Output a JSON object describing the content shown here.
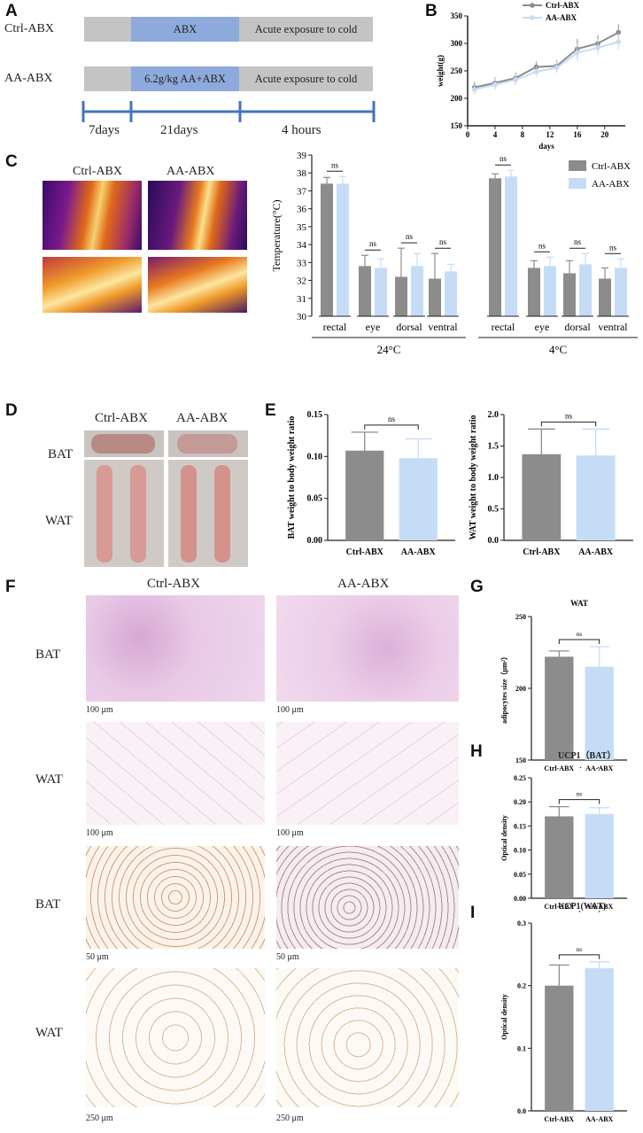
{
  "panels": {
    "A": "A",
    "B": "B",
    "C": "C",
    "D": "D",
    "E": "E",
    "F": "F",
    "G": "G",
    "H": "H",
    "I": "I"
  },
  "colors": {
    "ctrl": "#8c8c8c",
    "aa": "#c5dcf6",
    "abx": "#8eaadc",
    "grey_bar": "#c4c4c4",
    "timeline": "#4472c4"
  },
  "panelA": {
    "rows": [
      {
        "label": "Ctrl-ABX",
        "segments": [
          "",
          "ABX",
          "Acute exposure to cold"
        ]
      },
      {
        "label": "AA-ABX",
        "segments": [
          "",
          "6.2g/kg AA+ABX",
          "Acute exposure to cold"
        ]
      }
    ],
    "timeline": [
      "7days",
      "21days",
      "4 hours"
    ]
  },
  "panelB": {
    "chart_data": {
      "type": "line",
      "xlabel": "days",
      "ylabel": "weight(g)",
      "xlim": [
        0,
        23
      ],
      "ylim": [
        150,
        350
      ],
      "xticks": [
        0,
        4,
        8,
        12,
        16,
        20
      ],
      "yticks": [
        150,
        200,
        250,
        300,
        350
      ],
      "series": [
        {
          "name": "Ctrl-ABX",
          "x": [
            1,
            4,
            7,
            10,
            13,
            16,
            19,
            22
          ],
          "values": [
            220,
            228,
            237,
            257,
            259,
            290,
            300,
            320
          ],
          "err": [
            10,
            10,
            10,
            10,
            10,
            18,
            15,
            15
          ]
        },
        {
          "name": "AA-ABX",
          "x": [
            1,
            4,
            7,
            10,
            13,
            16,
            19,
            22
          ],
          "values": [
            216,
            225,
            234,
            248,
            256,
            283,
            292,
            303
          ],
          "err": [
            8,
            10,
            10,
            10,
            10,
            15,
            15,
            15
          ]
        }
      ]
    }
  },
  "panelC": {
    "thermal_labels": [
      "Ctrl-ABX",
      "AA-ABX"
    ],
    "chart_data": {
      "type": "bar",
      "ylabel": "Temperature(°C)",
      "ylim": [
        30,
        39
      ],
      "yticks": [
        30,
        31,
        32,
        33,
        34,
        35,
        36,
        37,
        38,
        39
      ],
      "categories": [
        "rectal",
        "eye",
        "dorsal",
        "ventral",
        "rectal",
        "eye",
        "dorsal",
        "ventral"
      ],
      "groups": [
        "24°C",
        "4°C"
      ],
      "series": [
        {
          "name": "Ctrl-ABX",
          "values": [
            37.4,
            32.8,
            32.2,
            32.1,
            37.7,
            32.7,
            32.4,
            32.1
          ],
          "err": [
            0.35,
            0.6,
            1.6,
            1.4,
            0.25,
            0.4,
            0.7,
            0.6
          ]
        },
        {
          "name": "AA-ABX",
          "values": [
            37.4,
            32.7,
            32.8,
            32.5,
            37.8,
            32.8,
            32.9,
            32.7
          ],
          "err": [
            0.4,
            0.5,
            0.7,
            0.4,
            0.35,
            0.5,
            0.6,
            0.5
          ]
        }
      ],
      "annotations": [
        "ns",
        "ns",
        "ns",
        "ns",
        "ns",
        "ns",
        "ns",
        "ns"
      ]
    }
  },
  "panelD": {
    "cols": [
      "Ctrl-ABX",
      "AA-ABX"
    ],
    "rows": [
      "BAT",
      "WAT"
    ]
  },
  "panelE": {
    "chart_data": [
      {
        "type": "bar",
        "ylabel": "BAT weight to body weight ratio",
        "categories": [
          "Ctrl-ABX",
          "AA-ABX"
        ],
        "values": [
          0.107,
          0.098
        ],
        "err": [
          0.022,
          0.023
        ],
        "ylim": [
          0,
          0.15
        ],
        "yticks": [
          "0.00",
          "0.05",
          "0.10",
          "0.15"
        ],
        "annotation": "ns"
      },
      {
        "type": "bar",
        "ylabel": "WAT weight to body weight ratio",
        "categories": [
          "Ctrl-ABX",
          "AA-ABX"
        ],
        "values": [
          1.37,
          1.35
        ],
        "err": [
          0.4,
          0.42
        ],
        "ylim": [
          0,
          2.0
        ],
        "yticks": [
          "0.0",
          "0.5",
          "1.0",
          "1.5",
          "2.0"
        ],
        "annotation": "ns"
      }
    ]
  },
  "panelF": {
    "cols": [
      "Ctrl-ABX",
      "AA-ABX"
    ],
    "rows": [
      "BAT",
      "WAT",
      "BAT",
      "WAT"
    ],
    "scales": [
      "100 μm",
      "100 μm",
      "50 μm",
      "250 μm"
    ]
  },
  "panelG": {
    "chart_data": {
      "type": "bar",
      "title": "WAT",
      "ylabel": "adipocytes size（μm²）",
      "categories": [
        "Ctrl-ABX",
        "AA-ABX"
      ],
      "values": [
        222,
        215
      ],
      "err": [
        4,
        14
      ],
      "ylim": [
        150,
        250
      ],
      "yticks": [
        "150",
        "200",
        "250"
      ],
      "annotation": "ns"
    }
  },
  "panelH": {
    "chart_data": {
      "type": "bar",
      "title": "UCP1（BAT）",
      "ylabel": "Optical density",
      "categories": [
        "Ctrl-ABX",
        "AA-ABX"
      ],
      "values": [
        0.17,
        0.175
      ],
      "err": [
        0.02,
        0.013
      ],
      "ylim": [
        0,
        0.25
      ],
      "yticks": [
        "0.00",
        "0.05",
        "0.10",
        "0.15",
        "0.20",
        "0.25"
      ],
      "annotation": "ns"
    }
  },
  "panelI": {
    "chart_data": {
      "type": "bar",
      "title": "UCP1(WAT)",
      "ylabel": "Optical density",
      "categories": [
        "Ctrl-ABX",
        "AA-ABX"
      ],
      "values": [
        0.2,
        0.228
      ],
      "err": [
        0.033,
        0.01
      ],
      "ylim": [
        0,
        0.3
      ],
      "yticks": [
        "0.0",
        "0.1",
        "0.2",
        "0.3"
      ],
      "annotation": "ns"
    }
  }
}
